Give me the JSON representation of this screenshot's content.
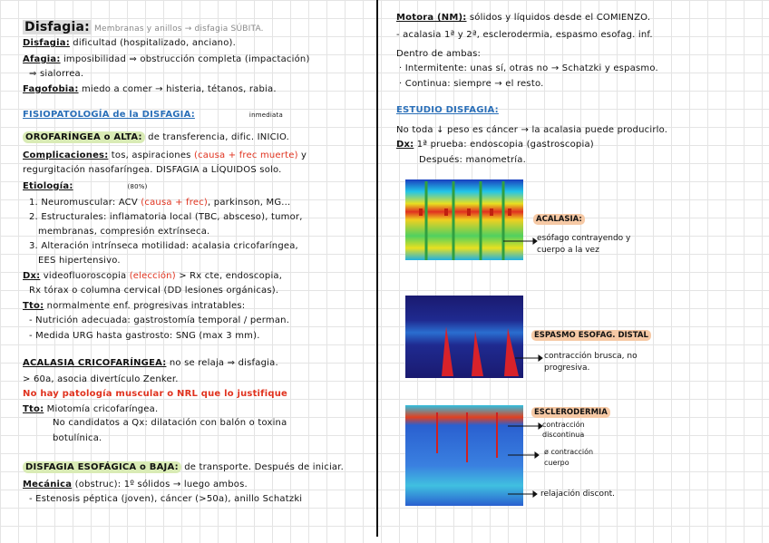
{
  "left_column": {
    "lines": [
      [
        "Disfagia:",
        " Membranas y anillos → disfagia SÚBITA."
      ],
      [
        "Disfagia:",
        " dificultad (hospitalizado, anciano)."
      ],
      [
        "Afagia:",
        " imposibilidad ⇒ obstrucción completa (impactación)"
      ],
      [
        "⇒ sialorrea."
      ],
      [
        "Fagofobia:",
        " miedo a comer → histeria, tétanos, rabia."
      ],
      [
        "FISIOPATOLOGÍA de la DISFAGIA:",
        "inmediata"
      ],
      [
        "OROFARÍNGEA o ALTA:",
        " de transferencia, dific. INICIO."
      ],
      [
        "Complicaciones:",
        " tos, aspiraciones ",
        "(causa + frec muerte)",
        " y"
      ],
      [
        "regurgitación nasofaríngea. DISFAGIA a LÍQUIDOS solo."
      ],
      [
        "Etiología:",
        "(80%)"
      ],
      [
        "1. Neuromuscular: ACV ",
        "(causa + frec)",
        ", parkinson, MG..."
      ],
      [
        "2. Estructurales: inflamatoria local (TBC, absceso), tumor,"
      ],
      [
        "membranas, compresión extrínseca."
      ],
      [
        "3. Alteración intrínseca motilidad: acalasia cricofaríngea,"
      ],
      [
        "EES hipertensivo."
      ],
      [
        "Dx:",
        " videofluoroscopia ",
        "(elección)",
        " > Rx cte, endoscopia,"
      ],
      [
        "Rx tórax o columna cervical (DD lesiones orgánicas)."
      ],
      [
        "Tto:",
        " normalmente enf. progresivas intratables:"
      ],
      [
        "- Nutrición adecuada: gastrostomía temporal / perman."
      ],
      [
        "- Medida URG hasta gastrosto: SNG (max 3 mm)."
      ],
      [
        "ACALASIA CRICOFARÍNGEA:",
        " no se relaja ⇒ disfagia."
      ],
      [
        "> 60a, asocia divertículo Zenker."
      ],
      [
        "No hay patología muscular o NRL que lo justifique"
      ],
      [
        "Tto:",
        " Miotomía cricofaríngea."
      ],
      [
        "No candidatos a Qx: dilatación con balón o toxina"
      ],
      [
        "botulínica."
      ],
      [
        "DISFAGIA ESOFÁGICA o BAJA:",
        " de transporte. Después de iniciar."
      ],
      [
        "Mecánica",
        " (obstruc): 1º sólidos → luego ambos."
      ],
      [
        "- Estenosis péptica (joven), cáncer (>50a), anillo Schatzki"
      ]
    ]
  },
  "right_column": {
    "lines": [
      [
        "Motora (NM):",
        " sólidos y líquidos desde el COMIENZO."
      ],
      [
        "- acalasia 1ª y 2ª, esclerodermia, espasmo esofag. inf."
      ],
      [
        "Dentro de ambas:"
      ],
      [
        "· Intermitente: unas sí, otras no → Schatzki y espasmo."
      ],
      [
        "· Continua: siempre → el resto."
      ],
      [
        "ESTUDIO DISFAGIA:"
      ],
      [
        "No toda ↓ peso es cáncer → la acalasia puede producirlo."
      ],
      [
        "Dx:",
        " 1ª prueba: endoscopia (gastroscopia)"
      ],
      [
        "Después: manometría."
      ]
    ]
  },
  "figures": [
    {
      "title": "ACALASIA:",
      "notes": [
        "esófago contrayendo y",
        "cuerpo a la vez"
      ]
    },
    {
      "title": "ESPASMO ESOFAG. DISTAL",
      "notes": [
        "contracción brusca, no",
        "progresiva."
      ]
    },
    {
      "title": "ESCLERODERMIA",
      "notes": [
        "contracción",
        "discontinua",
        "ø contracción",
        "cuerpo",
        "relajación discont."
      ]
    }
  ]
}
